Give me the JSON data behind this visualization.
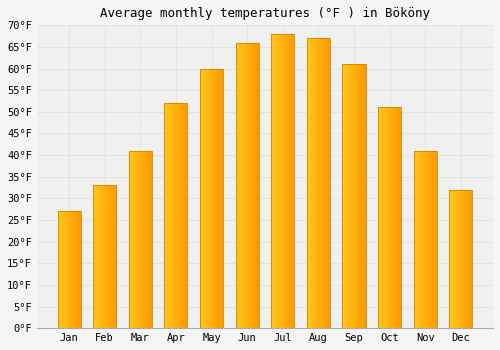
{
  "title": "Average monthly temperatures (°F ) in Bököny",
  "months": [
    "Jan",
    "Feb",
    "Mar",
    "Apr",
    "May",
    "Jun",
    "Jul",
    "Aug",
    "Sep",
    "Oct",
    "Nov",
    "Dec"
  ],
  "values": [
    27,
    33,
    41,
    52,
    60,
    66,
    68,
    67,
    61,
    51,
    41,
    32
  ],
  "bar_color_left": "#FFB700",
  "bar_color_right": "#FFA500",
  "bar_color_mid": "#FFCC44",
  "bar_edge_color": "#CC8800",
  "background_color": "#f5f5f5",
  "plot_bg_color": "#f0f0f0",
  "grid_color": "#e0e0e0",
  "ylim": [
    0,
    70
  ],
  "ytick_step": 5,
  "title_fontsize": 9,
  "tick_fontsize": 7.5,
  "font_family": "monospace"
}
